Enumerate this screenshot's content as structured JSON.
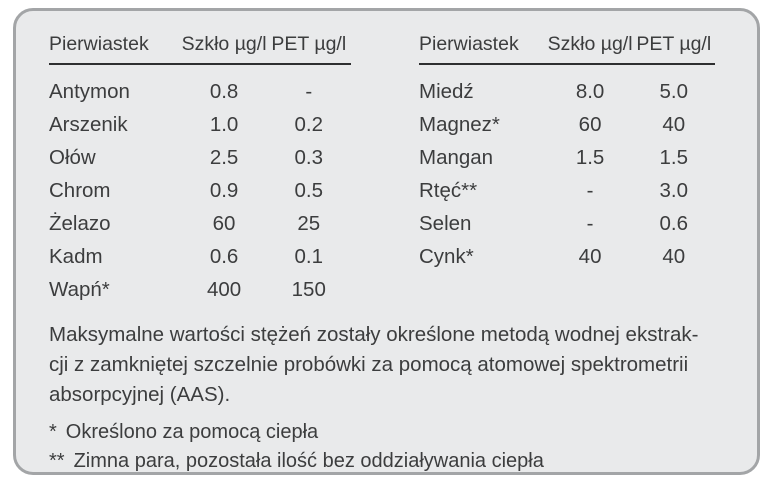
{
  "colors": {
    "card_background": "#e9eaeb",
    "card_border": "#a3a5a7",
    "text": "#3c3d3e",
    "header_underline": "#2e2f30"
  },
  "tables": [
    {
      "headers": [
        "Pierwiastek",
        "Szkło µg/l",
        "PET µg/l"
      ],
      "rows": [
        {
          "element": "Antymon",
          "glass": "0.8",
          "pet": "-"
        },
        {
          "element": "Arszenik",
          "glass": "1.0",
          "pet": "0.2"
        },
        {
          "element": "Ołów",
          "glass": "2.5",
          "pet": "0.3"
        },
        {
          "element": "Chrom",
          "glass": "0.9",
          "pet": "0.5"
        },
        {
          "element": "Żelazo",
          "glass": "60",
          "pet": "25"
        },
        {
          "element": "Kadm",
          "glass": "0.6",
          "pet": "0.1"
        },
        {
          "element": "Wapń*",
          "glass": "400",
          "pet": "150"
        }
      ]
    },
    {
      "headers": [
        "Pierwiastek",
        "Szkło µg/l",
        "PET µg/l"
      ],
      "rows": [
        {
          "element": "Miedź",
          "glass": "8.0",
          "pet": "5.0"
        },
        {
          "element": "Magnez*",
          "glass": "60",
          "pet": "40"
        },
        {
          "element": "Mangan",
          "glass": "1.5",
          "pet": "1.5"
        },
        {
          "element": "Rtęć**",
          "glass": "-",
          "pet": "3.0"
        },
        {
          "element": "Selen",
          "glass": "-",
          "pet": "0.6"
        },
        {
          "element": "Cynk*",
          "glass": "40",
          "pet": "40"
        }
      ]
    }
  ],
  "note": {
    "lines": [
      "Maksymalne wartości stężeń zostały określone metodą wodnej ekstrak-",
      "cji z zamkniętej szczelnie probówki za pomocą atomowej spektrometrii",
      "absorpcyjnej (AAS)."
    ]
  },
  "footnotes": [
    {
      "marker": "*",
      "text": "Określono za pomocą ciepła"
    },
    {
      "marker": "**",
      "text": "Zimna para, pozostała ilość bez oddziaływania ciepła"
    }
  ]
}
